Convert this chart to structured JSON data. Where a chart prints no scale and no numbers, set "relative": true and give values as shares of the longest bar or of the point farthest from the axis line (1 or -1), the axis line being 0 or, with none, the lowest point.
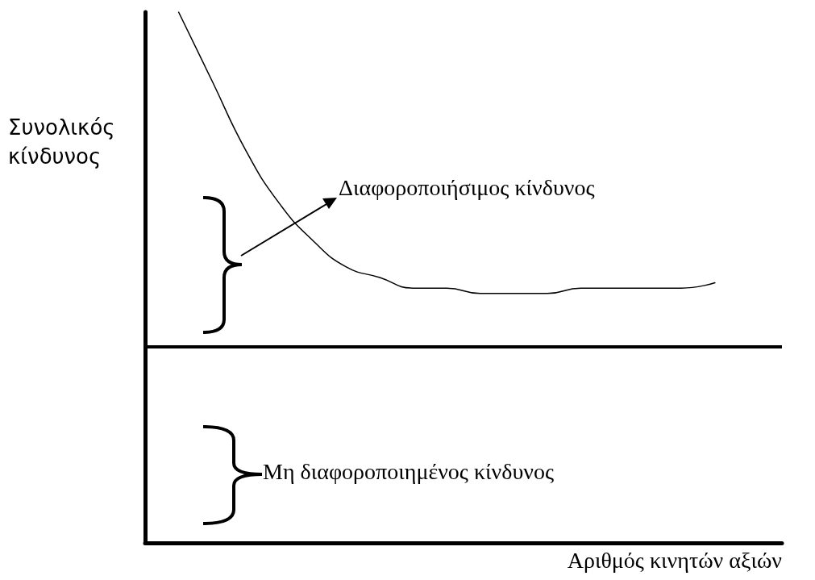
{
  "chart_data": {
    "type": "line",
    "relative": true,
    "xlabel": "Αριθμός κινητών αξιών",
    "ylabel": "Συνολικός\nκίνδυνος",
    "categories": [
      null,
      null,
      null,
      null,
      null,
      null,
      null,
      null,
      null,
      null,
      null,
      null,
      null,
      null,
      null,
      null,
      null,
      null,
      null,
      null
    ],
    "series": [
      {
        "color": "#000000",
        "values": [
          null,
          1,
          0.87,
          0.74,
          0.64,
          0.57,
          0.52,
          0.5,
          0.48,
          0.48,
          0.47,
          0.47,
          0.47,
          0.48,
          0.48,
          0.48,
          0.48,
          0.49,
          null,
          null
        ]
      }
    ],
    "ref_lines": [
      {
        "axis": "y",
        "value": 0.37,
        "color": "#000000"
      }
    ],
    "annotations": [
      "Διαφοροποιήσιμος κίνδυνος",
      "Μη διαφοροποιημένος κίνδυνος"
    ],
    "grid": false,
    "marker": "none",
    "line_style": "solid"
  }
}
